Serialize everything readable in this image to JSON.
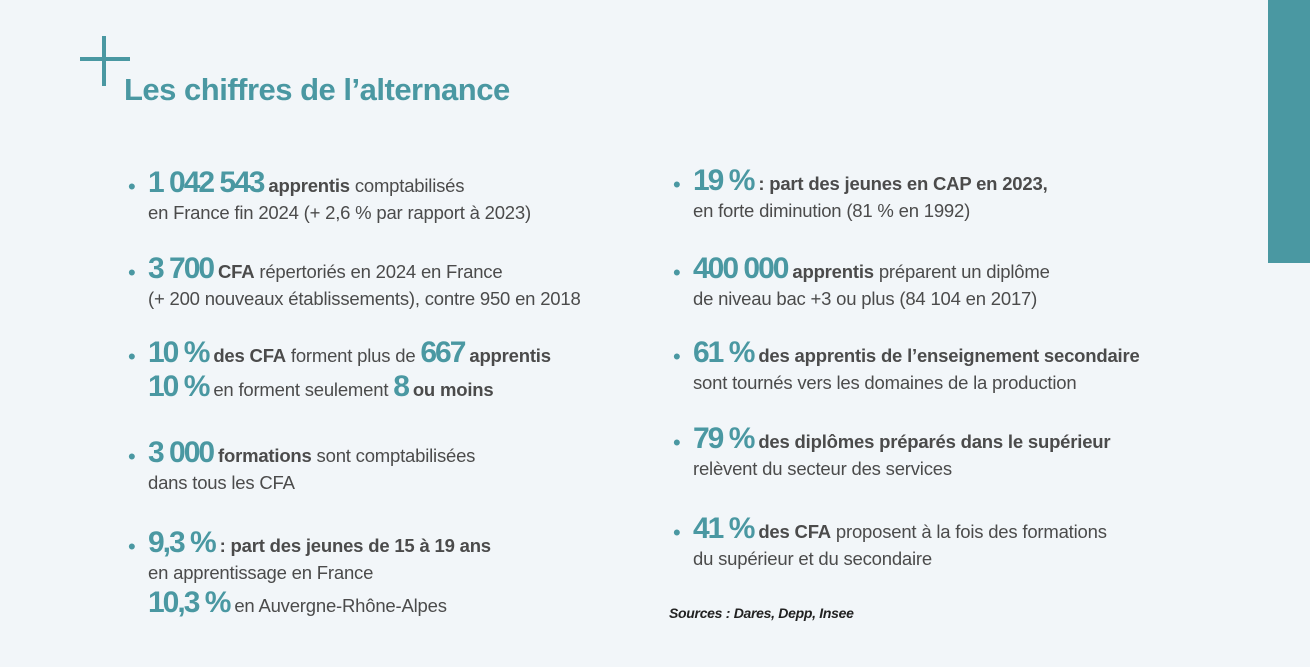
{
  "title": "Les chiffres de l’alternance",
  "colors": {
    "accent": "#4a98a2",
    "text": "#4b4b4b",
    "background": "#f2f6f9"
  },
  "left_items": [
    {
      "lines": [
        [
          {
            "t": "num",
            "v": "1 042 543"
          },
          {
            "t": "bold",
            "v": " apprentis"
          },
          {
            "t": "text",
            "v": " comptabilisés"
          }
        ],
        [
          {
            "t": "text",
            "v": "en France fin 2024 (+ 2,6 % par rapport à 2023)"
          }
        ]
      ]
    },
    {
      "lines": [
        [
          {
            "t": "num",
            "v": "3 700"
          },
          {
            "t": "bold",
            "v": " CFA"
          },
          {
            "t": "text",
            "v": " répertoriés en 2024 en France"
          }
        ],
        [
          {
            "t": "text",
            "v": "(+ 200 nouveaux établissements), contre 950 en 2018"
          }
        ]
      ]
    },
    {
      "lines": [
        [
          {
            "t": "num",
            "v": "10 %"
          },
          {
            "t": "bold",
            "v": " des CFA"
          },
          {
            "t": "text",
            "v": " forment plus de "
          },
          {
            "t": "num",
            "v": "667"
          },
          {
            "t": "bold",
            "v": " apprentis"
          }
        ],
        [
          {
            "t": "num",
            "v": "10 %"
          },
          {
            "t": "text",
            "v": " en forment seulement "
          },
          {
            "t": "num",
            "v": "8"
          },
          {
            "t": "bold",
            "v": " ou moins"
          }
        ]
      ]
    },
    {
      "lines": [
        [
          {
            "t": "num",
            "v": "3 000"
          },
          {
            "t": "bold",
            "v": " formations"
          },
          {
            "t": "text",
            "v": " sont comptabilisées"
          }
        ],
        [
          {
            "t": "text",
            "v": "dans tous les CFA"
          }
        ]
      ]
    },
    {
      "lines": [
        [
          {
            "t": "num",
            "v": "9,3 %"
          },
          {
            "t": "bold",
            "v": " : part des jeunes de 15 à 19 ans"
          }
        ],
        [
          {
            "t": "text",
            "v": "en apprentissage en France"
          }
        ],
        [
          {
            "t": "num",
            "v": "10,3 %"
          },
          {
            "t": "text",
            "v": " en Auvergne-Rhône-Alpes"
          }
        ]
      ]
    }
  ],
  "right_items": [
    {
      "lines": [
        [
          {
            "t": "num",
            "v": "19 %"
          },
          {
            "t": "bold",
            "v": " : part des jeunes en CAP en 2023,"
          }
        ],
        [
          {
            "t": "text",
            "v": "en forte diminution (81 % en 1992)"
          }
        ]
      ]
    },
    {
      "lines": [
        [
          {
            "t": "num",
            "v": "400 000"
          },
          {
            "t": "bold",
            "v": " apprentis"
          },
          {
            "t": "text",
            "v": " préparent un diplôme"
          }
        ],
        [
          {
            "t": "text",
            "v": "de niveau bac +3 ou plus (84 104 en 2017)"
          }
        ]
      ]
    },
    {
      "lines": [
        [
          {
            "t": "num",
            "v": "61 %"
          },
          {
            "t": "bold",
            "v": " des apprentis de l’enseignement secondaire"
          }
        ],
        [
          {
            "t": "text",
            "v": "sont tournés vers les domaines de la production"
          }
        ]
      ]
    },
    {
      "lines": [
        [
          {
            "t": "num",
            "v": "79 %"
          },
          {
            "t": "bold",
            "v": " des diplômes préparés dans le supérieur"
          }
        ],
        [
          {
            "t": "text",
            "v": "relèvent du secteur des services"
          }
        ]
      ]
    },
    {
      "lines": [
        [
          {
            "t": "num",
            "v": "41 %"
          },
          {
            "t": "bold",
            "v": " des CFA"
          },
          {
            "t": "text",
            "v": " proposent à la fois des formations"
          }
        ],
        [
          {
            "t": "text",
            "v": "du supérieur et du secondaire"
          }
        ]
      ]
    }
  ],
  "sources": "Sources : Dares, Depp, Insee",
  "bullet": "•"
}
